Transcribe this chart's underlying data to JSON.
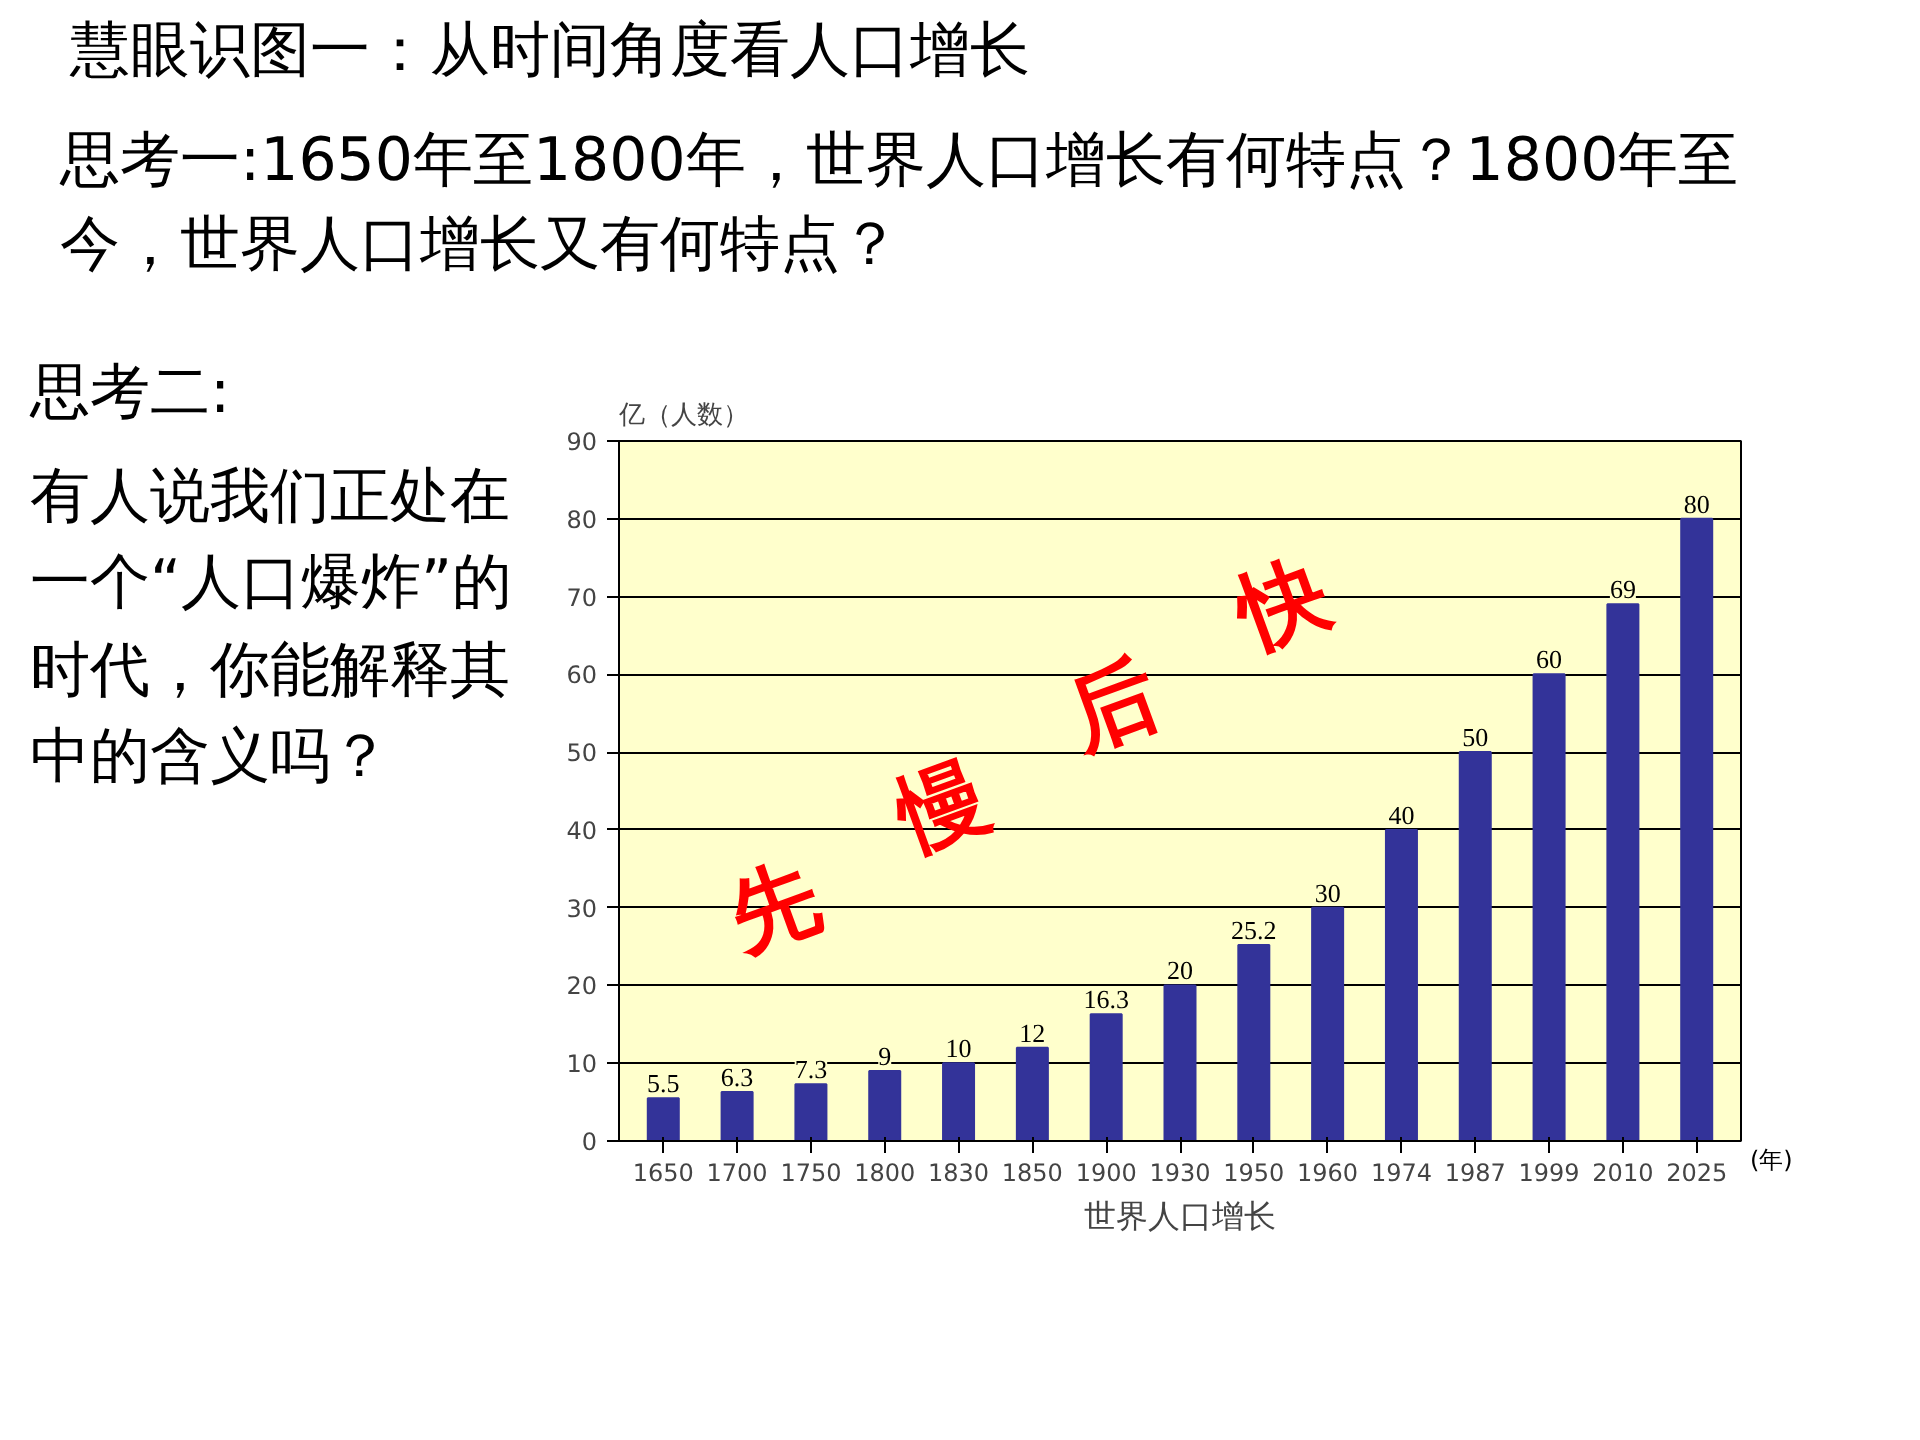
{
  "chart_data": {
    "type": "bar",
    "title": "慧眼识图一：从时间角度看人口增长",
    "subtitle": "思考一:1650年至1800年，世界人口增长有何特点？1800年至今，世界人口增长又有何特点？",
    "annotations": [
      "思考二:",
      "有人说我们正处在一个“人口爆炸”的时代，你能解释其中的含义吗？",
      "先慢后快",
      "(年)"
    ],
    "xlabel": "世界人口增长",
    "ylabel": "亿（人数）",
    "categories": [
      "1650",
      "1700",
      "1750",
      "1800",
      "1830",
      "1850",
      "1900",
      "1930",
      "1950",
      "1960",
      "1974",
      "1987",
      "1999",
      "2010",
      "2025"
    ],
    "values": [
      5.5,
      6.3,
      7.3,
      9,
      10,
      12,
      16.3,
      20,
      25.2,
      30,
      40,
      50,
      60,
      69,
      80
    ],
    "color": "#333399",
    "data_labels": true,
    "grid": "y",
    "ylim": [
      0,
      90
    ],
    "yticks": [
      0,
      10,
      20,
      30,
      40,
      50,
      60,
      70,
      80,
      90
    ]
  }
}
